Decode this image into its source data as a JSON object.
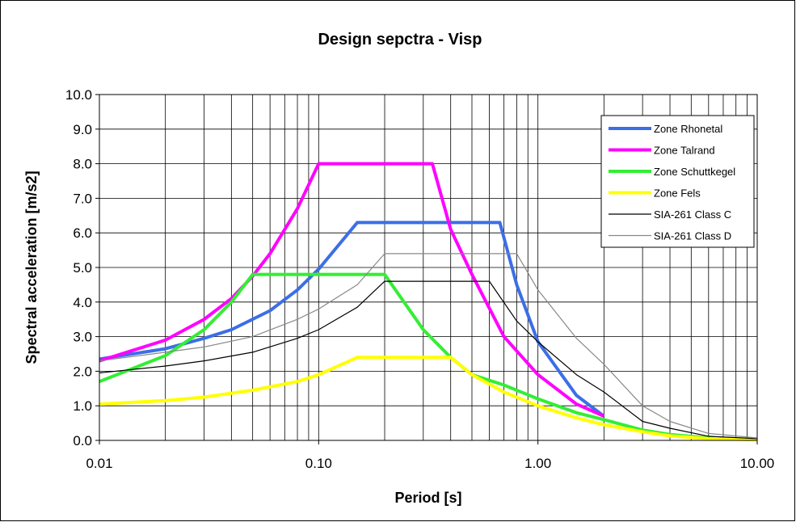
{
  "chart_data": {
    "type": "line",
    "title": "Design sepctra - Visp",
    "xlabel": "Period [s]",
    "ylabel": "Spectral acceleration [m/s2]",
    "xscale": "log",
    "xlim": [
      0.01,
      10
    ],
    "ylim": [
      0,
      10
    ],
    "x_ticks": [
      0.01,
      0.1,
      1,
      10
    ],
    "x_tick_labels": [
      "0.01",
      "0.10",
      "1.00",
      "10.00"
    ],
    "y_ticks": [
      0,
      1,
      2,
      3,
      4,
      5,
      6,
      7,
      8,
      9,
      10
    ],
    "y_tick_labels": [
      "0.0",
      "1.0",
      "2.0",
      "3.0",
      "4.0",
      "5.0",
      "6.0",
      "7.0",
      "8.0",
      "9.0",
      "10.0"
    ],
    "grid": true,
    "legend_position": "top-right",
    "series": [
      {
        "name": "Zone Rhonetal",
        "color": "#3c6ee6",
        "x": [
          0.01,
          0.02,
          0.03,
          0.04,
          0.06,
          0.08,
          0.1,
          0.15,
          0.2,
          0.3,
          0.5,
          0.67,
          0.8,
          1.0,
          1.5,
          2.0
        ],
        "y": [
          2.35,
          2.65,
          2.95,
          3.2,
          3.75,
          4.35,
          4.95,
          6.3,
          6.3,
          6.3,
          6.3,
          6.3,
          4.5,
          2.85,
          1.3,
          0.7
        ]
      },
      {
        "name": "Zone Talrand",
        "color": "#ff00ff",
        "x": [
          0.01,
          0.02,
          0.03,
          0.04,
          0.05,
          0.06,
          0.08,
          0.1,
          0.15,
          0.2,
          0.33,
          0.4,
          0.5,
          0.7,
          1.0,
          1.5,
          2.0
        ],
        "y": [
          2.3,
          2.9,
          3.5,
          4.1,
          4.75,
          5.4,
          6.7,
          8.0,
          8.0,
          8.0,
          8.0,
          6.1,
          4.8,
          3.0,
          1.9,
          1.05,
          0.7
        ]
      },
      {
        "name": "Zone Schuttkegel",
        "color": "#33ee33",
        "x": [
          0.01,
          0.02,
          0.03,
          0.04,
          0.05,
          0.1,
          0.2,
          0.3,
          0.4,
          0.5,
          0.7,
          1.0,
          1.5,
          2.0,
          3.0,
          4.0,
          6.0,
          10.0
        ],
        "y": [
          1.7,
          2.45,
          3.2,
          4.0,
          4.8,
          4.8,
          4.8,
          3.2,
          2.4,
          1.9,
          1.6,
          1.2,
          0.8,
          0.6,
          0.3,
          0.17,
          0.07,
          0.02
        ]
      },
      {
        "name": "Zone Fels",
        "color": "#ffff00",
        "x": [
          0.01,
          0.02,
          0.03,
          0.05,
          0.08,
          0.1,
          0.15,
          0.2,
          0.3,
          0.4,
          0.5,
          0.7,
          1.0,
          1.5,
          2.0,
          3.0,
          4.0,
          6.0,
          10.0
        ],
        "y": [
          1.05,
          1.15,
          1.25,
          1.45,
          1.7,
          1.9,
          2.4,
          2.4,
          2.4,
          2.4,
          1.9,
          1.4,
          1.0,
          0.65,
          0.45,
          0.25,
          0.13,
          0.05,
          0.02
        ]
      },
      {
        "name": "SIA-261 Class C",
        "color": "#000000",
        "x": [
          0.01,
          0.02,
          0.03,
          0.05,
          0.08,
          0.1,
          0.15,
          0.2,
          0.3,
          0.4,
          0.6,
          0.8,
          1.0,
          1.5,
          2.0,
          3.0,
          4.0,
          6.0,
          10.0
        ],
        "y": [
          1.95,
          2.15,
          2.3,
          2.55,
          2.95,
          3.2,
          3.85,
          4.6,
          4.6,
          4.6,
          4.6,
          3.45,
          2.85,
          1.9,
          1.4,
          0.55,
          0.35,
          0.12,
          0.05
        ]
      },
      {
        "name": "SIA-261 Class D",
        "color": "#888888",
        "x": [
          0.01,
          0.02,
          0.03,
          0.05,
          0.08,
          0.1,
          0.15,
          0.2,
          0.3,
          0.5,
          0.8,
          1.0,
          1.5,
          2.0,
          3.0,
          4.0,
          6.0,
          10.0
        ],
        "y": [
          2.3,
          2.55,
          2.7,
          3.0,
          3.5,
          3.8,
          4.5,
          5.4,
          5.4,
          5.4,
          5.4,
          4.35,
          2.95,
          2.2,
          1.0,
          0.55,
          0.2,
          0.07
        ]
      }
    ]
  }
}
